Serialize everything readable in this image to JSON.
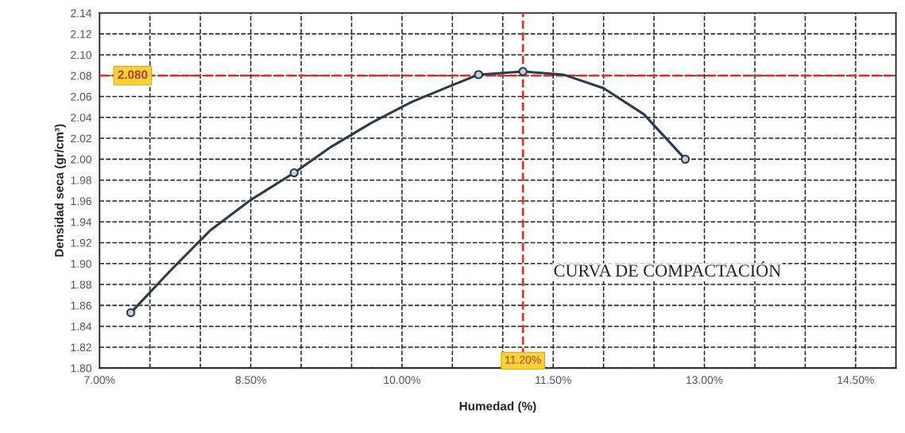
{
  "chart_data": {
    "type": "line",
    "xlabel": "Humedad (%)",
    "ylabel": "Densidad seca (gr/cm³)",
    "x": [
      7.31,
      8.93,
      10.76,
      11.2,
      12.81
    ],
    "series": [
      {
        "marker": "none",
        "color": "#2b3a4a",
        "x": [
          7.31,
          7.7,
          8.1,
          8.5,
          8.93,
          9.3,
          9.7,
          10.1,
          10.5,
          10.76,
          11.2,
          11.6,
          12.0,
          12.4,
          12.81
        ],
        "values": [
          1.853,
          1.893,
          1.932,
          1.961,
          1.987,
          2.012,
          2.035,
          2.055,
          2.071,
          2.081,
          2.084,
          2.081,
          2.068,
          2.043,
          2.0
        ]
      },
      {
        "type": "scatter",
        "marker": "circle",
        "color": "#2b3a4a",
        "values": [
          1.853,
          1.987,
          2.081,
          2.084,
          2.0
        ]
      }
    ],
    "line_style": "solid",
    "grid": true,
    "xlim": [
      7.0,
      14.9
    ],
    "ylim": [
      1.8,
      2.14
    ],
    "xticks": [
      {
        "value": 7.0,
        "label": "7.00%"
      },
      {
        "value": 7.5,
        "label": null
      },
      {
        "value": 8.0,
        "label": null
      },
      {
        "value": 8.5,
        "label": "8.50%"
      },
      {
        "value": 9.0,
        "label": null
      },
      {
        "value": 9.5,
        "label": null
      },
      {
        "value": 10.0,
        "label": "10.00%"
      },
      {
        "value": 10.5,
        "label": null
      },
      {
        "value": 11.0,
        "label": null
      },
      {
        "value": 11.5,
        "label": "11.50%"
      },
      {
        "value": 12.0,
        "label": null
      },
      {
        "value": 12.5,
        "label": null
      },
      {
        "value": 13.0,
        "label": "13.00%"
      },
      {
        "value": 13.5,
        "label": null
      },
      {
        "value": 14.0,
        "label": null
      },
      {
        "value": 14.5,
        "label": "14.50%"
      }
    ],
    "yticks": [
      {
        "value": 1.8,
        "label": "1.80"
      },
      {
        "value": 1.82,
        "label": "1.82"
      },
      {
        "value": 1.84,
        "label": "1.84"
      },
      {
        "value": 1.86,
        "label": "1.86"
      },
      {
        "value": 1.88,
        "label": "1.88"
      },
      {
        "value": 1.9,
        "label": "1.90"
      },
      {
        "value": 1.92,
        "label": "1.92"
      },
      {
        "value": 1.94,
        "label": "1.94"
      },
      {
        "value": 1.96,
        "label": "1.96"
      },
      {
        "value": 1.98,
        "label": "1.98"
      },
      {
        "value": 2.0,
        "label": "2.00"
      },
      {
        "value": 2.02,
        "label": "2.02"
      },
      {
        "value": 2.04,
        "label": "2.04"
      },
      {
        "value": 2.06,
        "label": "2.06"
      },
      {
        "value": 2.08,
        "label": "2.08"
      },
      {
        "value": 2.1,
        "label": "2.10"
      },
      {
        "value": 2.12,
        "label": "2.12"
      },
      {
        "value": 2.14,
        "label": "2.14"
      }
    ],
    "ref_lines": [
      {
        "axis": "y",
        "value": 2.08,
        "label": "2.080",
        "color": "#d9342b",
        "line_style": "dashed"
      },
      {
        "axis": "x",
        "value": 11.2,
        "label": "11.20%",
        "color": "#d9342b",
        "line_style": "dashed"
      }
    ],
    "annotations": [
      "CURVA DE COMPACTACIÓN"
    ]
  }
}
